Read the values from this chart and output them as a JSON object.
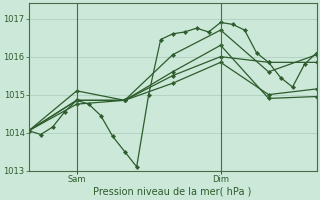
{
  "title": "",
  "xlabel": "Pression niveau de la mer( hPa )",
  "background_color": "#cce8d8",
  "grid_color": "#aacaba",
  "line_color": "#2d5c2d",
  "spine_color": "#4a6a4a",
  "ylim": [
    1013.0,
    1017.4
  ],
  "yticks": [
    1013,
    1014,
    1015,
    1016,
    1017
  ],
  "xlim": [
    0,
    48
  ],
  "sam_x": 8,
  "dim_x": 32,
  "series": [
    {
      "x": [
        0,
        2,
        4,
        6,
        8,
        10,
        12,
        14,
        16,
        18,
        20,
        22,
        24,
        26,
        28,
        30,
        32,
        34,
        36,
        38,
        40,
        42,
        44,
        46,
        48
      ],
      "y": [
        1014.05,
        1013.95,
        1014.15,
        1014.55,
        1014.85,
        1014.75,
        1014.45,
        1013.9,
        1013.5,
        1013.1,
        1015.0,
        1016.45,
        1016.6,
        1016.65,
        1016.75,
        1016.65,
        1016.9,
        1016.85,
        1016.7,
        1016.1,
        1015.85,
        1015.45,
        1015.2,
        1015.8,
        1016.1
      ]
    },
    {
      "x": [
        0,
        8,
        16,
        24,
        32,
        40,
        48
      ],
      "y": [
        1014.05,
        1014.85,
        1014.85,
        1015.5,
        1016.0,
        1015.85,
        1015.85
      ]
    },
    {
      "x": [
        0,
        8,
        16,
        24,
        32,
        40,
        48
      ],
      "y": [
        1014.05,
        1015.1,
        1014.85,
        1016.05,
        1016.7,
        1015.6,
        1016.05
      ]
    },
    {
      "x": [
        0,
        8,
        16,
        24,
        32,
        40,
        48
      ],
      "y": [
        1014.05,
        1014.75,
        1014.85,
        1015.3,
        1015.85,
        1015.0,
        1015.15
      ]
    },
    {
      "x": [
        0,
        8,
        16,
        24,
        32,
        40,
        48
      ],
      "y": [
        1014.05,
        1014.85,
        1014.85,
        1015.6,
        1016.3,
        1014.9,
        1014.95
      ]
    }
  ],
  "tick_labelsize": 6,
  "xlabel_fontsize": 7,
  "label_color": "#2d5c2d"
}
